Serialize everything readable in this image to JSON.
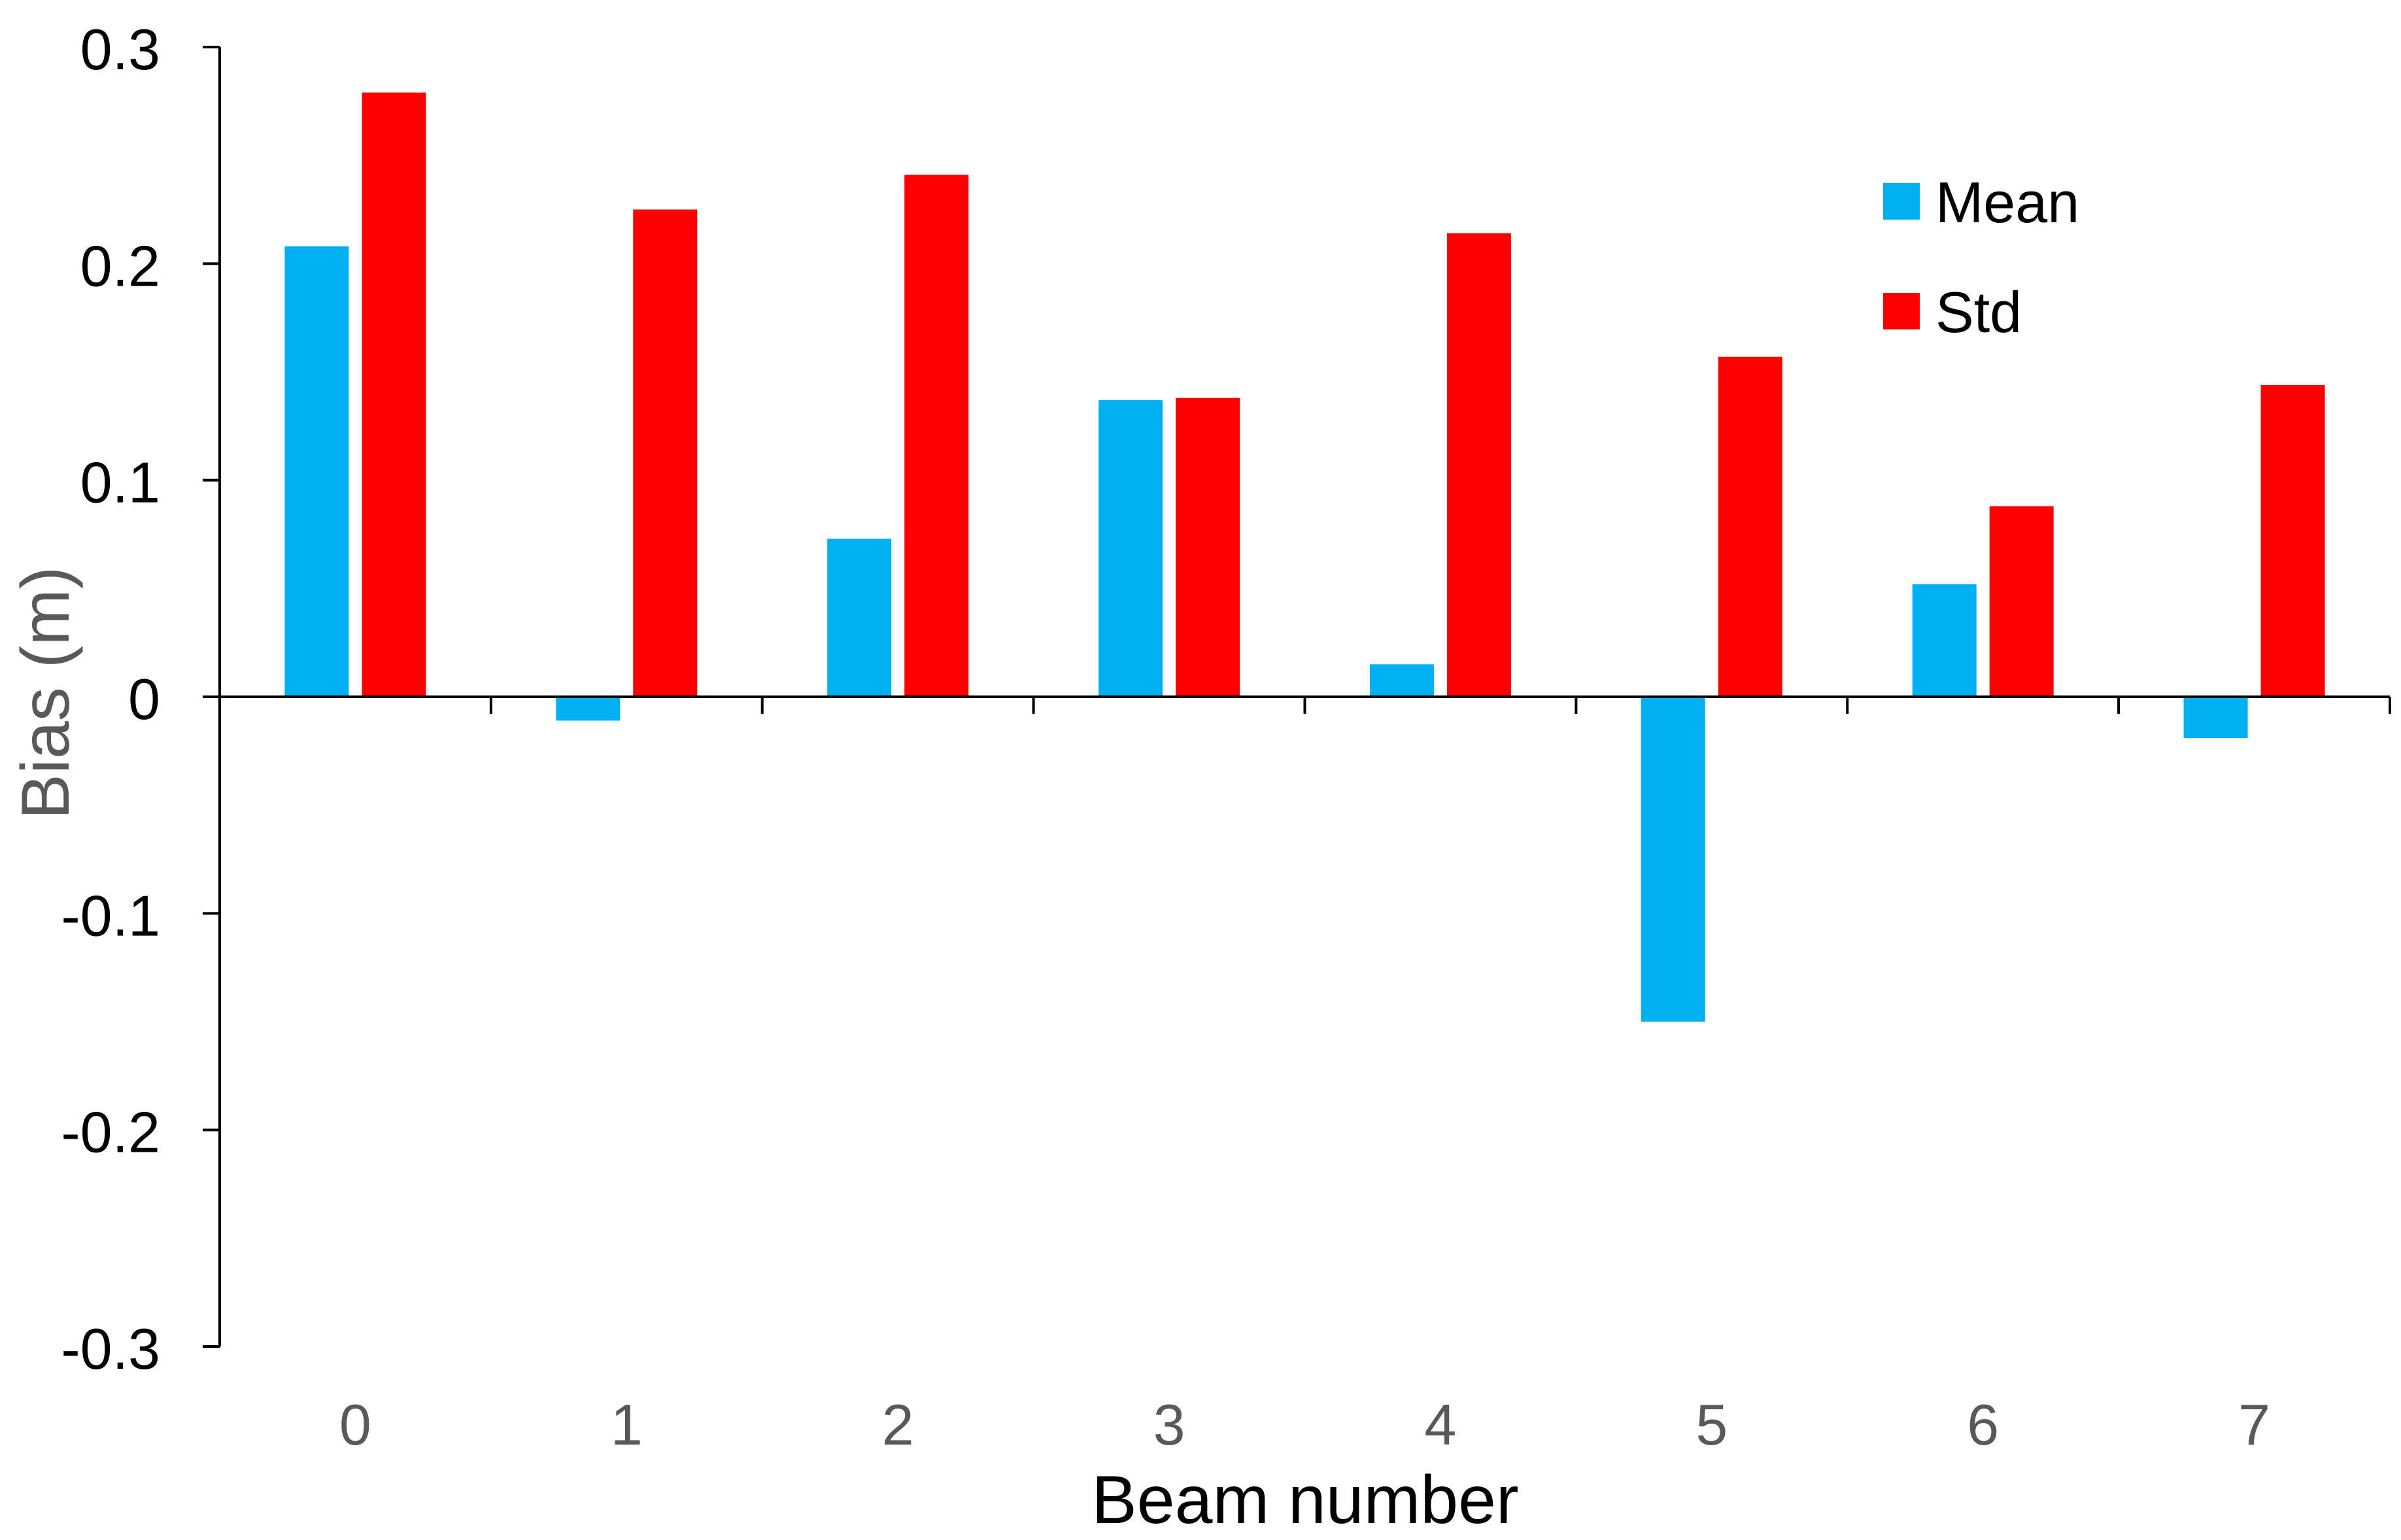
{
  "chart_data": {
    "type": "bar",
    "title": "",
    "xlabel": "Beam number",
    "ylabel": "Bias (m)",
    "categories": [
      "0",
      "1",
      "2",
      "3",
      "4",
      "5",
      "6",
      "7"
    ],
    "series": [
      {
        "name": "Mean",
        "color": "#00B0F0",
        "values": [
          0.208,
          -0.011,
          0.073,
          0.137,
          0.015,
          -0.15,
          0.052,
          -0.019
        ]
      },
      {
        "name": "Std",
        "color": "#FF0000",
        "values": [
          0.279,
          0.225,
          0.241,
          0.138,
          0.214,
          0.157,
          0.088,
          0.144
        ]
      }
    ],
    "ylim": [
      -0.3,
      0.3
    ],
    "yticks": [
      "-0.3",
      "-0.2",
      "-0.1",
      "0",
      "0.1",
      "0.2",
      "0.3"
    ],
    "grid": false,
    "legend_position": "top-right"
  }
}
